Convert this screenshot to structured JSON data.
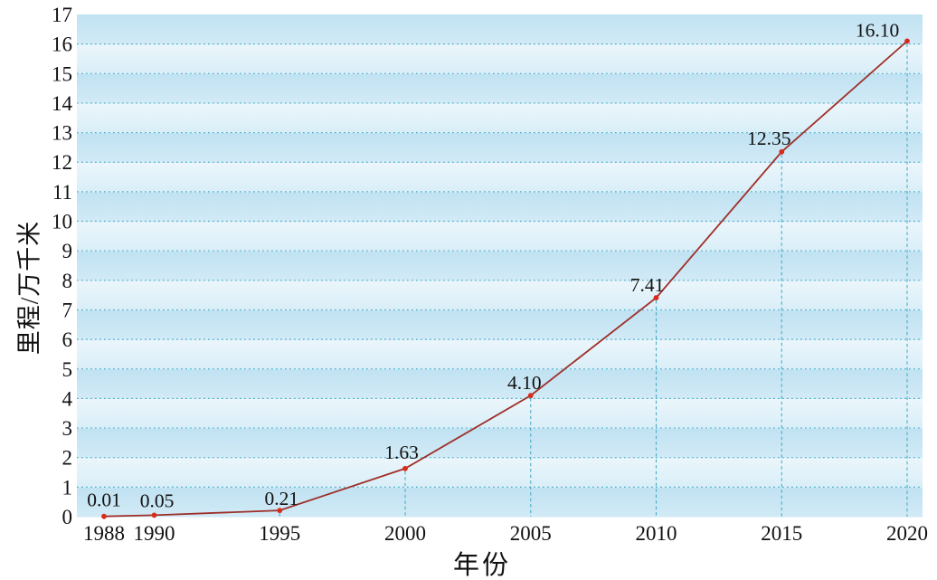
{
  "chart_data": {
    "type": "line",
    "title": "",
    "xlabel": "年份",
    "ylabel": "里程/万千米",
    "categories": [
      "1988",
      "1990",
      "1995",
      "2000",
      "2005",
      "2010",
      "2015",
      "2020"
    ],
    "x": [
      1988,
      1990,
      1995,
      2000,
      2005,
      2010,
      2015,
      2020
    ],
    "values": [
      0.01,
      0.05,
      0.21,
      1.63,
      4.1,
      7.41,
      12.35,
      16.1
    ],
    "point_labels": [
      "0.01",
      "0.05",
      "0.21",
      "1.63",
      "4.10",
      "7.41",
      "12.35",
      "16.10"
    ],
    "y_ticks": [
      "0",
      "1",
      "2",
      "3",
      "4",
      "5",
      "6",
      "7",
      "8",
      "9",
      "10",
      "11",
      "12",
      "13",
      "14",
      "15",
      "16",
      "17"
    ],
    "ylim": [
      0,
      17
    ],
    "xlim": [
      1988,
      2020
    ],
    "grid": "horizontal-dotted",
    "legend": "none",
    "colors": {
      "line": "#9e2f28",
      "marker": "#d92b1c",
      "grid": "#49aecb",
      "dropline": "#4aacc8",
      "band_blue_top": "#c0e2f2",
      "band_blue_bottom": "#d2eaf6",
      "band_light_top": "#ebf6fb",
      "band_light_bottom": "#d9eef8",
      "text": "#111111"
    }
  }
}
